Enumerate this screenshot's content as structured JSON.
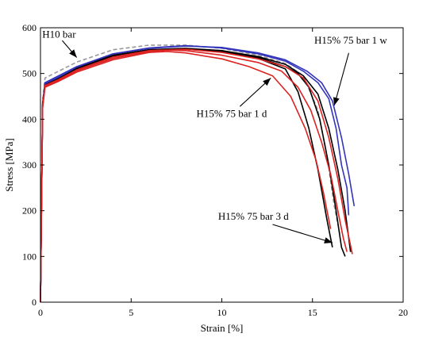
{
  "chart_data": {
    "type": "line",
    "xlabel": "Strain [%]",
    "ylabel": "Stress [MPa]",
    "xlim": [
      0,
      20
    ],
    "ylim": [
      0,
      600
    ],
    "xticks": [
      0,
      5,
      10,
      15,
      20
    ],
    "yticks": [
      0,
      100,
      200,
      300,
      400,
      500,
      600
    ],
    "grid": false,
    "annotations": [
      {
        "text": "H10 bar",
        "tx": 0.1,
        "ty": 578,
        "arrow_from": [
          1.2,
          572
        ],
        "arrow_to": [
          2.0,
          535
        ]
      },
      {
        "text": "H15% 75 bar 1 w",
        "tx": 15.1,
        "ty": 565,
        "arrow_from": [
          17.0,
          545
        ],
        "arrow_to": [
          16.2,
          430
        ]
      },
      {
        "text": "H15% 75 bar 1 d",
        "tx": 8.6,
        "ty": 405,
        "arrow_from": [
          11.0,
          428
        ],
        "arrow_to": [
          12.7,
          490
        ]
      },
      {
        "text": "H15% 75 bar 3 d",
        "tx": 9.8,
        "ty": 180,
        "arrow_from": [
          12.8,
          170
        ],
        "arrow_to": [
          16.1,
          130
        ]
      }
    ],
    "series": [
      {
        "color": "#999999",
        "dash": true,
        "points": [
          [
            0,
            0
          ],
          [
            0.12,
            440
          ],
          [
            0.25,
            490
          ],
          [
            1,
            505
          ],
          [
            2,
            525
          ],
          [
            4,
            552
          ],
          [
            6,
            562
          ],
          [
            8,
            562
          ],
          [
            10,
            555
          ],
          [
            12,
            540
          ],
          [
            13.5,
            522
          ],
          [
            14.5,
            495
          ],
          [
            15.3,
            420
          ],
          [
            15.8,
            320
          ],
          [
            16.2,
            210
          ],
          [
            16.5,
            150
          ]
        ]
      },
      {
        "color": "#000000",
        "dash": false,
        "points": [
          [
            0,
            0
          ],
          [
            0.12,
            435
          ],
          [
            0.25,
            478
          ],
          [
            1,
            490
          ],
          [
            2,
            510
          ],
          [
            4,
            538
          ],
          [
            6,
            552
          ],
          [
            8,
            555
          ],
          [
            10,
            550
          ],
          [
            12,
            533
          ],
          [
            13.5,
            510
          ],
          [
            14.2,
            460
          ],
          [
            14.8,
            380
          ],
          [
            15.3,
            290
          ],
          [
            15.8,
            180
          ],
          [
            16.1,
            120
          ]
        ]
      },
      {
        "color": "#000000",
        "dash": false,
        "points": [
          [
            0,
            0
          ],
          [
            0.12,
            432
          ],
          [
            0.25,
            478
          ],
          [
            1,
            490
          ],
          [
            2,
            512
          ],
          [
            4,
            540
          ],
          [
            6,
            552
          ],
          [
            8,
            553
          ],
          [
            10,
            548
          ],
          [
            12,
            535
          ],
          [
            13.5,
            515
          ],
          [
            14.2,
            500
          ],
          [
            14.8,
            470
          ],
          [
            15.4,
            400
          ],
          [
            15.9,
            300
          ],
          [
            16.3,
            200
          ],
          [
            16.6,
            120
          ],
          [
            16.8,
            100
          ]
        ]
      },
      {
        "color": "#000000",
        "dash": false,
        "points": [
          [
            0,
            0
          ],
          [
            0.12,
            430
          ],
          [
            0.25,
            476
          ],
          [
            1,
            489
          ],
          [
            2,
            510
          ],
          [
            4,
            538
          ],
          [
            6,
            550
          ],
          [
            8,
            553
          ],
          [
            10,
            550
          ],
          [
            12,
            537
          ],
          [
            13.5,
            520
          ],
          [
            14.5,
            495
          ],
          [
            15.3,
            455
          ],
          [
            15.9,
            380
          ],
          [
            16.4,
            290
          ],
          [
            16.8,
            200
          ],
          [
            17.1,
            110
          ]
        ]
      },
      {
        "color": "#3333bb",
        "dash": false,
        "points": [
          [
            0,
            0
          ],
          [
            0.12,
            430
          ],
          [
            0.25,
            480
          ],
          [
            1,
            495
          ],
          [
            2,
            515
          ],
          [
            4,
            543
          ],
          [
            6,
            555
          ],
          [
            8,
            560
          ],
          [
            10,
            557
          ],
          [
            12,
            545
          ],
          [
            13.5,
            530
          ],
          [
            14.7,
            505
          ],
          [
            15.5,
            480
          ],
          [
            16.1,
            440
          ],
          [
            16.6,
            360
          ],
          [
            17.0,
            280
          ],
          [
            17.3,
            210
          ]
        ]
      },
      {
        "color": "#3333bb",
        "dash": false,
        "points": [
          [
            0,
            0
          ],
          [
            0.12,
            428
          ],
          [
            0.25,
            478
          ],
          [
            1,
            492
          ],
          [
            2,
            514
          ],
          [
            4,
            543
          ],
          [
            6,
            556
          ],
          [
            8,
            561
          ],
          [
            10,
            556
          ],
          [
            12,
            543
          ],
          [
            13.5,
            527
          ],
          [
            14.5,
            505
          ],
          [
            15.3,
            480
          ],
          [
            15.9,
            445
          ],
          [
            16.3,
            380
          ],
          [
            16.6,
            300
          ],
          [
            16.9,
            250
          ],
          [
            17.0,
            190
          ]
        ]
      },
      {
        "color": "#dd2222",
        "dash": false,
        "points": [
          [
            0,
            0
          ],
          [
            0.12,
            425
          ],
          [
            0.25,
            470
          ],
          [
            1,
            483
          ],
          [
            2,
            503
          ],
          [
            4,
            530
          ],
          [
            6,
            546
          ],
          [
            7,
            548
          ],
          [
            8,
            545
          ],
          [
            10,
            532
          ],
          [
            11.5,
            515
          ],
          [
            12.8,
            495
          ],
          [
            13.8,
            450
          ],
          [
            14.6,
            380
          ],
          [
            15.2,
            310
          ],
          [
            15.6,
            240
          ],
          [
            16.0,
            160
          ]
        ]
      },
      {
        "color": "#dd2222",
        "dash": false,
        "points": [
          [
            0,
            0
          ],
          [
            0.12,
            425
          ],
          [
            0.25,
            472
          ],
          [
            1,
            485
          ],
          [
            2,
            506
          ],
          [
            4,
            533
          ],
          [
            6,
            548
          ],
          [
            7,
            551
          ],
          [
            8,
            550
          ],
          [
            10,
            540
          ],
          [
            12,
            524
          ],
          [
            13.3,
            505
          ],
          [
            14.2,
            470
          ],
          [
            14.9,
            420
          ],
          [
            15.5,
            350
          ],
          [
            16.0,
            280
          ],
          [
            16.4,
            200
          ],
          [
            16.7,
            140
          ],
          [
            16.9,
            110
          ]
        ]
      },
      {
        "color": "#dd2222",
        "dash": false,
        "points": [
          [
            0,
            0
          ],
          [
            0.12,
            428
          ],
          [
            0.25,
            474
          ],
          [
            1,
            487
          ],
          [
            2,
            508
          ],
          [
            4,
            536
          ],
          [
            6,
            550
          ],
          [
            8,
            553
          ],
          [
            10,
            546
          ],
          [
            12,
            532
          ],
          [
            13.5,
            515
          ],
          [
            14.5,
            490
          ],
          [
            15.3,
            440
          ],
          [
            15.9,
            360
          ],
          [
            16.4,
            270
          ],
          [
            16.8,
            180
          ],
          [
            17.2,
            105
          ]
        ]
      }
    ]
  }
}
